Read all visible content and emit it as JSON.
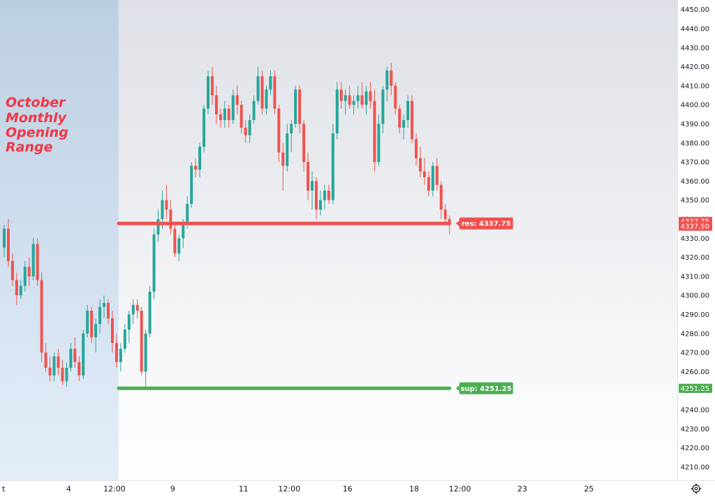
{
  "chart_data": {
    "type": "candlestick",
    "title": "",
    "xlabel": "",
    "ylabel": "",
    "ylim": [
      4203,
      4455
    ],
    "y_ticks": [
      4210,
      4220,
      4230,
      4240,
      4250,
      4260,
      4270,
      4280,
      4290,
      4300,
      4310,
      4320,
      4330,
      4340,
      4350,
      4360,
      4370,
      4380,
      4390,
      4400,
      4410,
      4420,
      4430,
      4440,
      4450
    ],
    "x_ticks": [
      {
        "label": "t",
        "bar": -0.5
      },
      {
        "label": "4",
        "bar": 15.5
      },
      {
        "label": "12:00",
        "bar": 26.5
      },
      {
        "label": "9",
        "bar": 40.5
      },
      {
        "label": "11",
        "bar": 57.5
      },
      {
        "label": "12:00",
        "bar": 68.5
      },
      {
        "label": "16",
        "bar": 82.5
      },
      {
        "label": "18",
        "bar": 98.5
      },
      {
        "label": "12:00",
        "bar": 109.5
      },
      {
        "label": "23",
        "bar": 124.5
      },
      {
        "label": "25",
        "bar": 140.5
      }
    ],
    "candles": [
      [
        4325,
        4337,
        4320,
        4335
      ],
      [
        4335,
        4340,
        4315,
        4318
      ],
      [
        4318,
        4322,
        4305,
        4308
      ],
      [
        4308,
        4312,
        4295,
        4300
      ],
      [
        4300,
        4308,
        4298,
        4305
      ],
      [
        4305,
        4318,
        4302,
        4315
      ],
      [
        4315,
        4320,
        4305,
        4310
      ],
      [
        4310,
        4330,
        4308,
        4327
      ],
      [
        4327,
        4330,
        4305,
        4308
      ],
      [
        4308,
        4312,
        4265,
        4270
      ],
      [
        4270,
        4275,
        4260,
        4262
      ],
      [
        4262,
        4268,
        4255,
        4258
      ],
      [
        4258,
        4270,
        4255,
        4268
      ],
      [
        4268,
        4272,
        4258,
        4262
      ],
      [
        4262,
        4266,
        4253,
        4255
      ],
      [
        4255,
        4265,
        4252,
        4262
      ],
      [
        4262,
        4275,
        4260,
        4272
      ],
      [
        4272,
        4278,
        4262,
        4265
      ],
      [
        4265,
        4268,
        4255,
        4258
      ],
      [
        4258,
        4282,
        4256,
        4280
      ],
      [
        4280,
        4295,
        4278,
        4292
      ],
      [
        4292,
        4294,
        4275,
        4278
      ],
      [
        4278,
        4288,
        4270,
        4285
      ],
      [
        4285,
        4298,
        4280,
        4294
      ],
      [
        4294,
        4300,
        4288,
        4296
      ],
      [
        4296,
        4298,
        4285,
        4288
      ],
      [
        4288,
        4292,
        4270,
        4275
      ],
      [
        4275,
        4280,
        4262,
        4265
      ],
      [
        4265,
        4275,
        4260,
        4272
      ],
      [
        4272,
        4285,
        4270,
        4282
      ],
      [
        4282,
        4292,
        4275,
        4290
      ],
      [
        4290,
        4298,
        4285,
        4295
      ],
      [
        4295,
        4298,
        4288,
        4292
      ],
      [
        4292,
        4294,
        4258,
        4260
      ],
      [
        4260,
        4282,
        4252,
        4280
      ],
      [
        4280,
        4305,
        4278,
        4302
      ],
      [
        4302,
        4335,
        4298,
        4332
      ],
      [
        4332,
        4345,
        4328,
        4340
      ],
      [
        4340,
        4355,
        4335,
        4350
      ],
      [
        4350,
        4358,
        4340,
        4345
      ],
      [
        4345,
        4350,
        4332,
        4335
      ],
      [
        4335,
        4338,
        4320,
        4322
      ],
      [
        4322,
        4332,
        4318,
        4330
      ],
      [
        4330,
        4340,
        4325,
        4338
      ],
      [
        4338,
        4352,
        4335,
        4348
      ],
      [
        4348,
        4370,
        4346,
        4368
      ],
      [
        4368,
        4372,
        4362,
        4366
      ],
      [
        4366,
        4380,
        4362,
        4378
      ],
      [
        4378,
        4400,
        4375,
        4398
      ],
      [
        4398,
        4418,
        4395,
        4415
      ],
      [
        4415,
        4420,
        4400,
        4405
      ],
      [
        4405,
        4410,
        4390,
        4395
      ],
      [
        4395,
        4398,
        4388,
        4392
      ],
      [
        4392,
        4402,
        4388,
        4398
      ],
      [
        4398,
        4400,
        4388,
        4392
      ],
      [
        4392,
        4408,
        4390,
        4405
      ],
      [
        4405,
        4410,
        4395,
        4400
      ],
      [
        4400,
        4402,
        4385,
        4388
      ],
      [
        4388,
        4392,
        4380,
        4384
      ],
      [
        4384,
        4395,
        4380,
        4392
      ],
      [
        4392,
        4405,
        4390,
        4402
      ],
      [
        4402,
        4420,
        4400,
        4415
      ],
      [
        4415,
        4418,
        4395,
        4398
      ],
      [
        4398,
        4410,
        4395,
        4408
      ],
      [
        4408,
        4418,
        4405,
        4415
      ],
      [
        4415,
        4418,
        4395,
        4398
      ],
      [
        4398,
        4400,
        4370,
        4375
      ],
      [
        4375,
        4380,
        4355,
        4368
      ],
      [
        4368,
        4390,
        4365,
        4385
      ],
      [
        4385,
        4392,
        4375,
        4390
      ],
      [
        4390,
        4410,
        4388,
        4408
      ],
      [
        4408,
        4410,
        4385,
        4390
      ],
      [
        4390,
        4392,
        4365,
        4370
      ],
      [
        4370,
        4375,
        4350,
        4355
      ],
      [
        4355,
        4365,
        4345,
        4360
      ],
      [
        4360,
        4362,
        4340,
        4345
      ],
      [
        4345,
        4355,
        4342,
        4350
      ],
      [
        4350,
        4358,
        4345,
        4355
      ],
      [
        4355,
        4358,
        4348,
        4350
      ],
      [
        4350,
        4390,
        4348,
        4385
      ],
      [
        4385,
        4412,
        4382,
        4408
      ],
      [
        4408,
        4412,
        4398,
        4402
      ],
      [
        4402,
        4408,
        4395,
        4405
      ],
      [
        4405,
        4410,
        4398,
        4400
      ],
      [
        4400,
        4405,
        4395,
        4402
      ],
      [
        4402,
        4410,
        4398,
        4405
      ],
      [
        4405,
        4412,
        4398,
        4400
      ],
      [
        4400,
        4410,
        4395,
        4407
      ],
      [
        4407,
        4412,
        4398,
        4402
      ],
      [
        4402,
        4408,
        4365,
        4370
      ],
      [
        4370,
        4395,
        4368,
        4390
      ],
      [
        4390,
        4410,
        4385,
        4408
      ],
      [
        4408,
        4420,
        4402,
        4418
      ],
      [
        4418,
        4422,
        4405,
        4410
      ],
      [
        4410,
        4412,
        4395,
        4398
      ],
      [
        4398,
        4400,
        4385,
        4388
      ],
      [
        4388,
        4395,
        4382,
        4392
      ],
      [
        4392,
        4405,
        4388,
        4402
      ],
      [
        4402,
        4405,
        4380,
        4382
      ],
      [
        4382,
        4385,
        4368,
        4372
      ],
      [
        4372,
        4378,
        4362,
        4365
      ],
      [
        4365,
        4372,
        4358,
        4362
      ],
      [
        4362,
        4365,
        4352,
        4355
      ],
      [
        4355,
        4370,
        4352,
        4368
      ],
      [
        4368,
        4372,
        4355,
        4358
      ],
      [
        4358,
        4360,
        4340,
        4345
      ],
      [
        4345,
        4348,
        4338,
        4340
      ],
      [
        4340,
        4342,
        4332,
        4337.5
      ]
    ],
    "resistance": {
      "label": "res: 4337.75",
      "price": 4337.75,
      "from_bar": 27.5,
      "to_bar": 107
    },
    "support": {
      "label": "sup: 4251.25",
      "price": 4251.25,
      "from_bar": 27.5,
      "to_bar": 107
    },
    "price_tags": [
      {
        "text": "4337.75",
        "price": 4338.8
      },
      {
        "text": "4337.50",
        "price": 4336.3
      },
      {
        "text": "4251.25",
        "price": 4251.25
      }
    ],
    "range_label": [
      "October",
      "Monthly",
      "Opening",
      "Range"
    ],
    "range_shading_end_bar": 27.5
  },
  "colors": {
    "up": "#26a69a",
    "down": "#ef5350",
    "resistance": "#f05050",
    "support": "#4caf50",
    "range_shade_top": "#bccfe2",
    "range_shade_bottom": "#e4eef9",
    "bg_top": "#dde0e6",
    "bg_bottom": "#ffffff"
  },
  "icons": {
    "settings": "gear-icon"
  }
}
